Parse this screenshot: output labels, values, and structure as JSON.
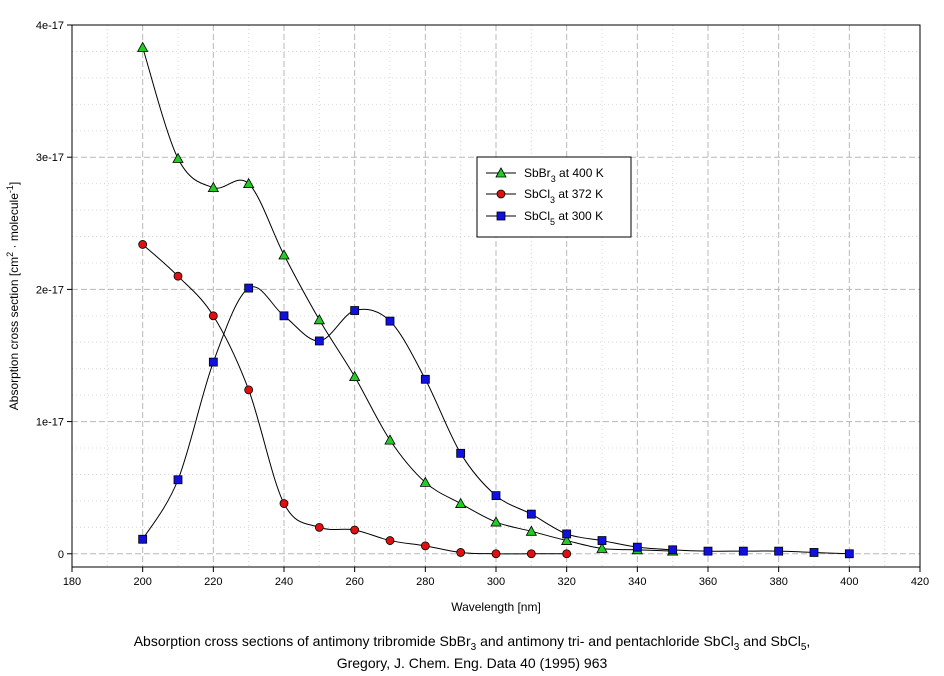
{
  "chart_data": {
    "type": "line",
    "xlabel": "Wavelength [nm]",
    "ylabel_parts": {
      "a": "Absorption cross section [cm",
      "b": "2",
      "c": " · molecule",
      "d": "-1",
      "e": "]"
    },
    "xlim": [
      180,
      420
    ],
    "ylim": [
      -1e-18,
      4e-17
    ],
    "x_ticks": [
      180,
      200,
      220,
      240,
      260,
      280,
      300,
      320,
      340,
      360,
      380,
      400,
      420
    ],
    "y_ticks": [
      {
        "value": 0,
        "label": "0"
      },
      {
        "value": 1e-17,
        "label": "1e-17"
      },
      {
        "value": 2e-17,
        "label": "2e-17"
      },
      {
        "value": 3e-17,
        "label": "3e-17"
      },
      {
        "value": 4e-17,
        "label": "4e-17"
      }
    ],
    "grid": true,
    "legend_position": "upper-right",
    "series": [
      {
        "name_parts": [
          "SbBr",
          "3",
          " at 400 K"
        ],
        "marker": "triangle",
        "color": "#22cc22",
        "x": [
          200,
          210,
          220,
          230,
          240,
          250,
          260,
          270,
          280,
          290,
          300,
          310,
          320,
          330,
          340,
          350
        ],
        "y": [
          3.83e-17,
          2.99e-17,
          2.77e-17,
          2.8e-17,
          2.26e-17,
          1.77e-17,
          1.34e-17,
          8.6e-18,
          5.4e-18,
          3.8e-18,
          2.4e-18,
          1.7e-18,
          1e-18,
          4e-19,
          3e-19,
          2e-19
        ]
      },
      {
        "name_parts": [
          "SbCl",
          "3",
          " at 372 K"
        ],
        "marker": "circle",
        "color": "#e01010",
        "x": [
          200,
          210,
          220,
          230,
          240,
          250,
          260,
          270,
          280,
          290,
          300,
          310,
          320
        ],
        "y": [
          2.34e-17,
          2.1e-17,
          1.8e-17,
          1.24e-17,
          3.8e-18,
          2e-18,
          1.8e-18,
          1e-18,
          6e-19,
          1e-19,
          0,
          0,
          0
        ]
      },
      {
        "name_parts": [
          "SbCl",
          "5",
          " at 300 K"
        ],
        "marker": "square",
        "color": "#1010e0",
        "x": [
          200,
          210,
          220,
          230,
          240,
          250,
          260,
          270,
          280,
          290,
          300,
          310,
          320,
          330,
          340,
          350,
          360,
          370,
          380,
          390,
          400
        ],
        "y": [
          1.1e-18,
          5.6e-18,
          1.45e-17,
          2.01e-17,
          1.8e-17,
          1.61e-17,
          1.84e-17,
          1.76e-17,
          1.32e-17,
          7.6e-18,
          4.4e-18,
          3e-18,
          1.5e-18,
          1e-18,
          5e-19,
          3e-19,
          2e-19,
          2e-19,
          2e-19,
          1e-19,
          0
        ]
      }
    ]
  },
  "caption": {
    "l1a": "Absorption cross sections of antimony tribromide SbBr",
    "l1b": "3",
    "l1c": " and antimony tri- and pentachloride SbCl",
    "l1d": "3",
    "l1e": " and SbCl",
    "l1f": "5",
    "l1g": ",",
    "l2": "Gregory, J. Chem. Eng. Data 40 (1995) 963"
  }
}
